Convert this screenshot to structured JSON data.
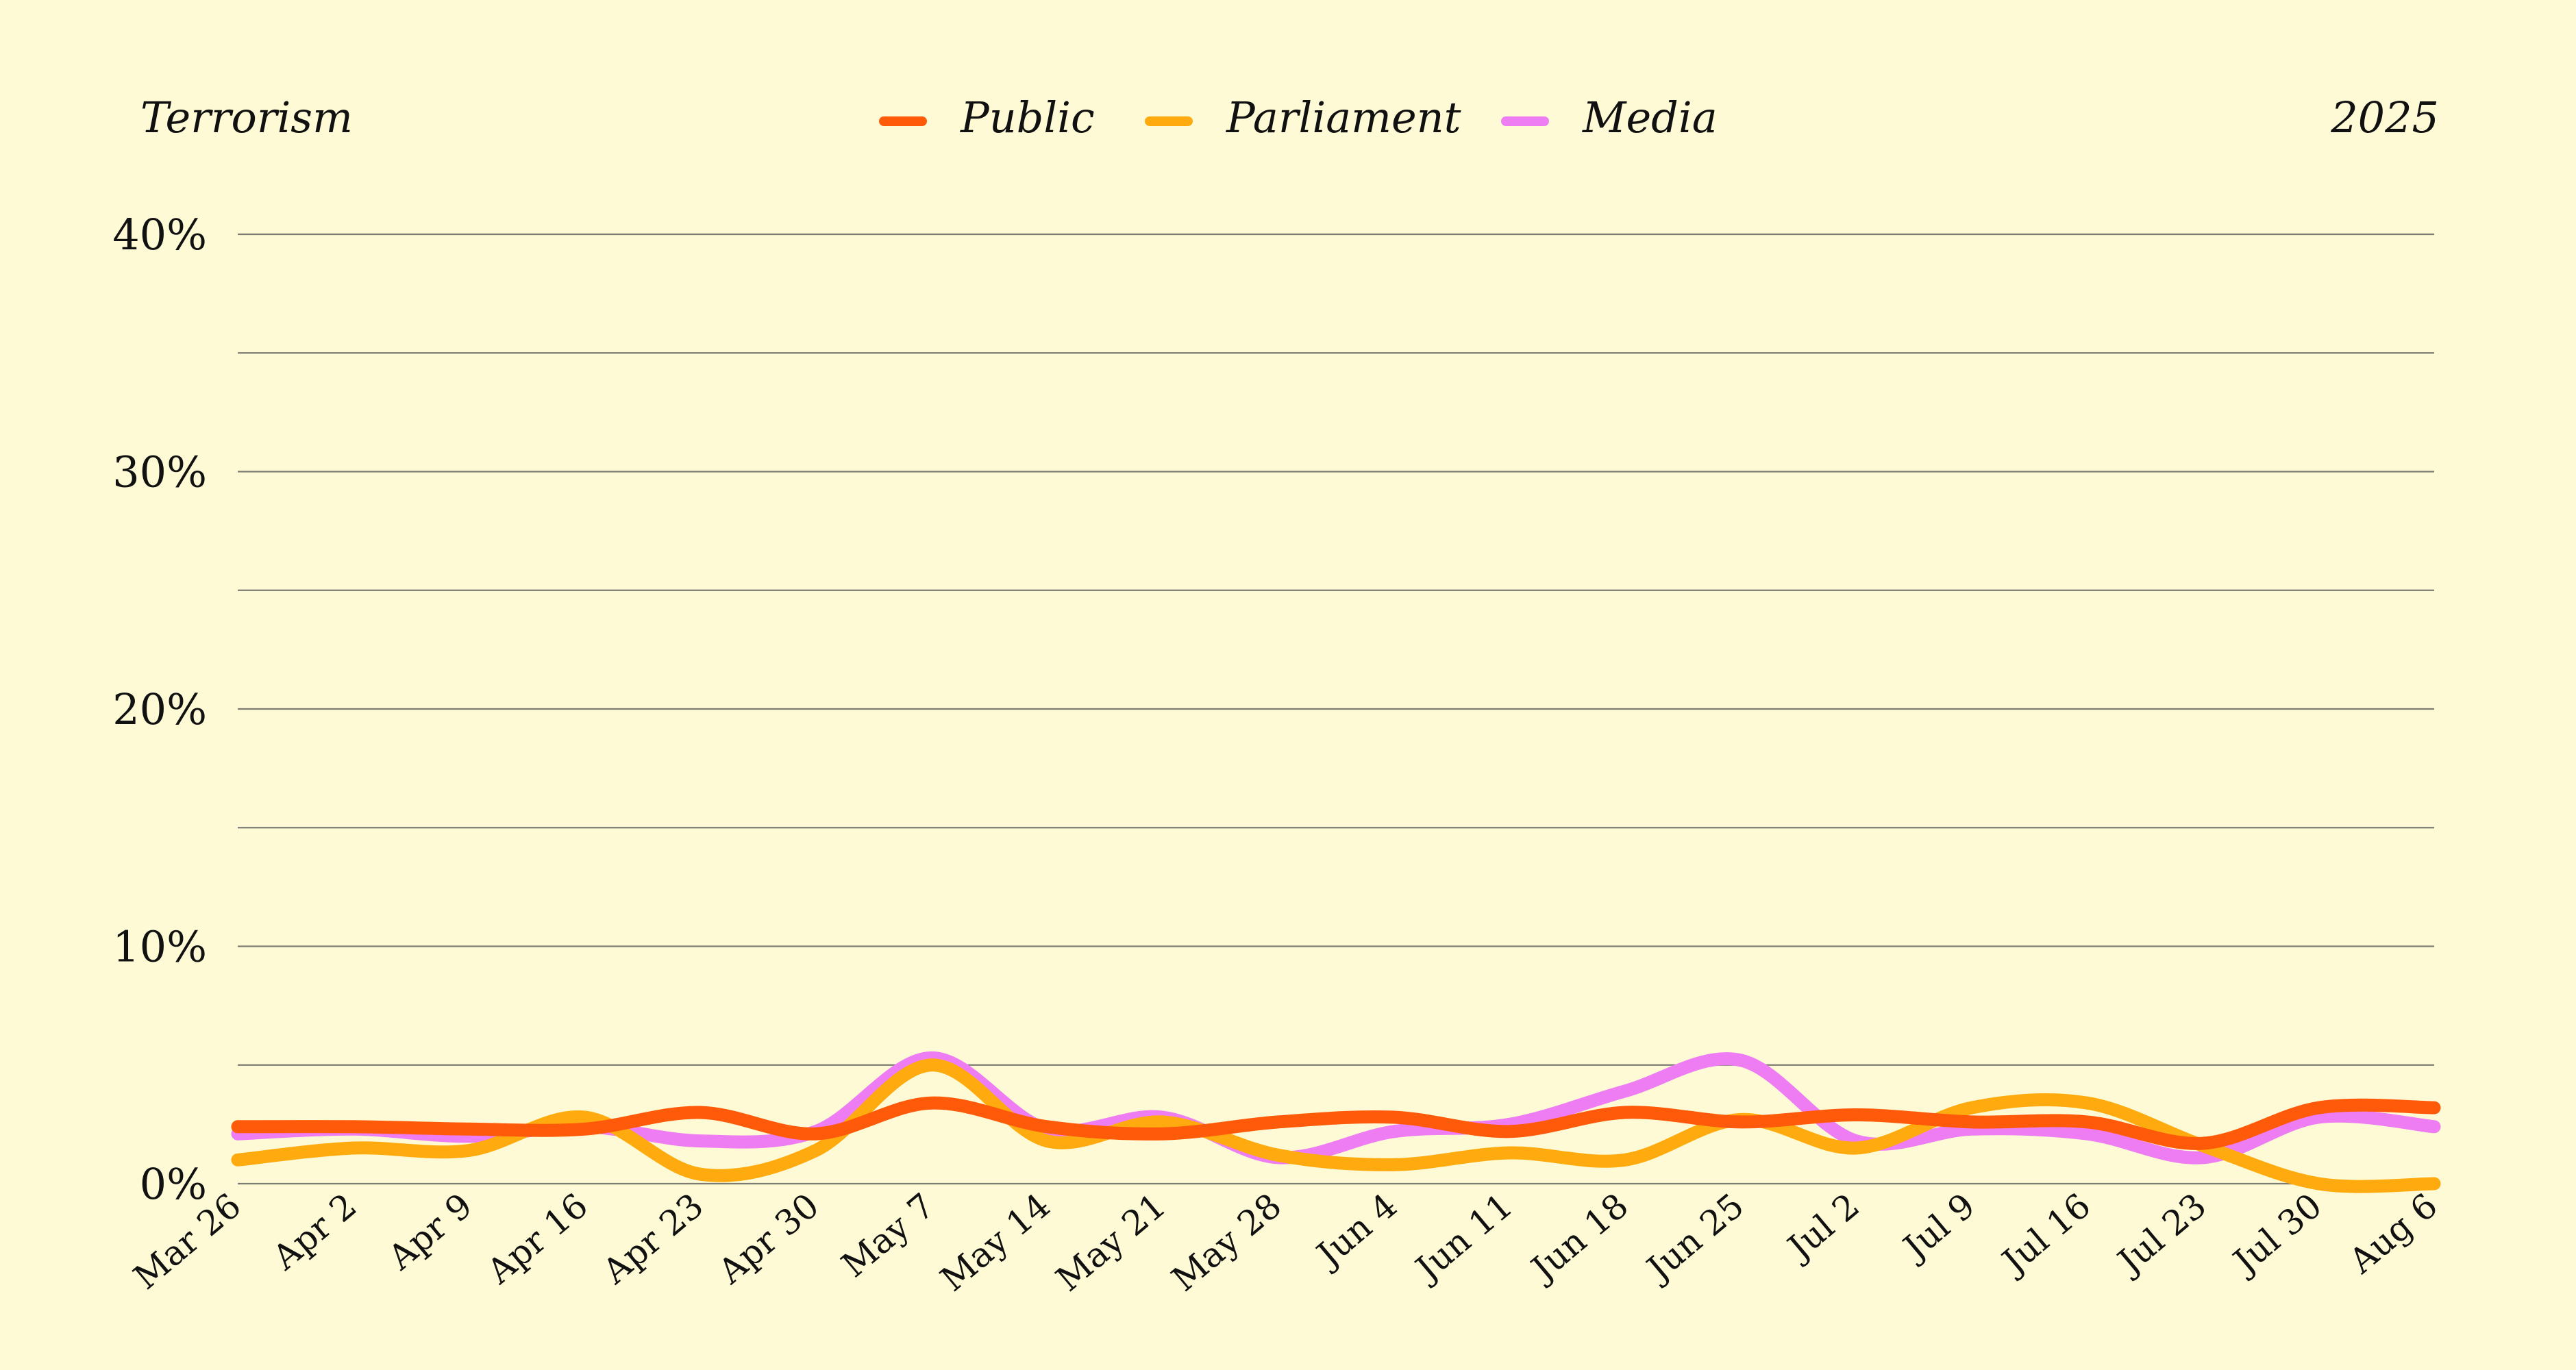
{
  "header": {
    "topic": "Terrorism",
    "year": "2025"
  },
  "chart_data": {
    "type": "line",
    "title": "Terrorism",
    "year_label": "2025",
    "x": [
      "Mar 26",
      "Apr 2",
      "Apr 9",
      "Apr 16",
      "Apr 23",
      "Apr 30",
      "May 7",
      "May 14",
      "May 21",
      "May 28",
      "Jun 4",
      "Jun 11",
      "Jun 18",
      "Jun 25",
      "Jul 2",
      "Jul 9",
      "Jul 16",
      "Jul 23",
      "Jul 30",
      "Aug 6"
    ],
    "ylim": [
      0,
      40
    ],
    "y_ticks": [
      0,
      10,
      20,
      30,
      40
    ],
    "y_tick_labels": [
      "0%",
      "10%",
      "20%",
      "30%",
      "40%"
    ],
    "y_minor_gridlines": [
      5,
      15,
      25,
      35
    ],
    "grid": true,
    "legend_position": "top-center",
    "series": [
      {
        "name": "Public",
        "color": "#ff5a0a",
        "values": [
          2.4,
          2.4,
          2.3,
          2.3,
          3.0,
          2.1,
          3.4,
          2.4,
          2.1,
          2.6,
          2.8,
          2.2,
          3.0,
          2.6,
          2.9,
          2.6,
          2.6,
          1.7,
          3.2,
          3.2
        ]
      },
      {
        "name": "Parliament",
        "color": "#ffab0f",
        "values": [
          1.0,
          1.5,
          1.4,
          2.8,
          0.4,
          1.4,
          5.0,
          1.8,
          2.6,
          1.2,
          0.8,
          1.3,
          1.0,
          2.7,
          1.5,
          3.2,
          3.4,
          1.6,
          0.0,
          0.0
        ]
      },
      {
        "name": "Media",
        "color": "#ee7cf2",
        "values": [
          2.1,
          2.3,
          2.0,
          2.4,
          1.8,
          2.2,
          5.3,
          2.3,
          2.8,
          1.1,
          2.2,
          2.5,
          3.9,
          5.2,
          1.8,
          2.3,
          2.1,
          1.1,
          2.8,
          2.4
        ]
      }
    ]
  }
}
